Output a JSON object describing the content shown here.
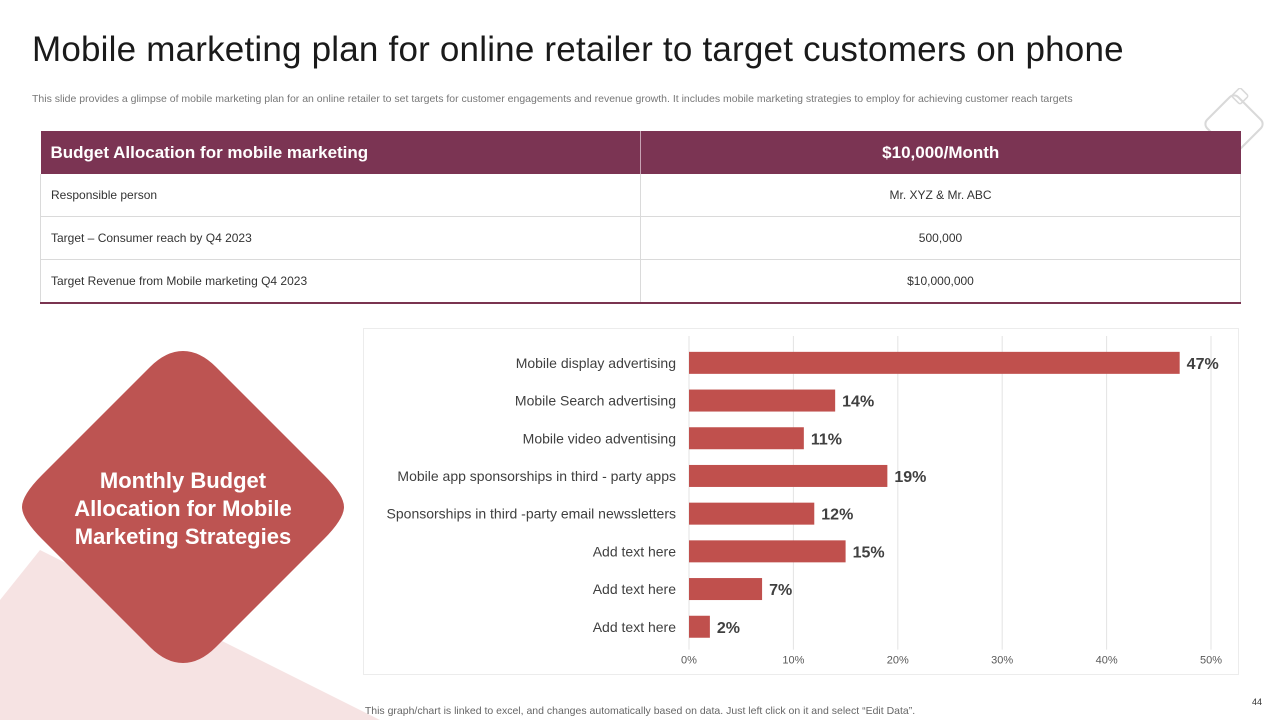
{
  "title": "Mobile marketing plan for online retailer to target customers on phone",
  "subtitle": "This slide provides a glimpse of mobile marketing plan for an online retailer to set targets for customer engagements and revenue growth. It includes mobile marketing strategies to employ for achieving customer reach targets",
  "table": {
    "header": [
      "Budget Allocation for mobile marketing",
      "$10,000/Month"
    ],
    "rows": [
      [
        "Responsible  person",
        "Mr. XYZ  &  Mr. ABC"
      ],
      [
        "Target  – Consumer  reach  by Q4  2023",
        "500,000"
      ],
      [
        "Target  Revenue  from  Mobile  marketing  Q4  2023",
        "$10,000,000"
      ]
    ]
  },
  "callout": {
    "lines": [
      "Monthly Budget",
      "Allocation for Mobile",
      "Marketing Strategies"
    ]
  },
  "colors": {
    "header": "#7b3453",
    "bar": "#c0504d",
    "diamond": "#bd5452",
    "accent_light": "#f6e3e3"
  },
  "chart_data": {
    "type": "bar",
    "orientation": "horizontal",
    "categories": [
      "Mobile display advertising",
      "Mobile Search advertising",
      "Mobile video adventising",
      "Mobile app sponsorships in third - party apps",
      "Sponsorships in third -party email newssletters",
      "Add text here",
      "Add text here",
      "Add text here"
    ],
    "values": [
      47,
      14,
      11,
      19,
      12,
      15,
      7,
      2
    ],
    "value_labels": [
      "47%",
      "14%",
      "11%",
      "19%",
      "12%",
      "15%",
      "7%",
      "2%"
    ],
    "x_ticks": [
      "0%",
      "10%",
      "20%",
      "30%",
      "40%",
      "50%"
    ],
    "xlim": [
      0,
      50
    ],
    "grid": true,
    "xlabel": "",
    "ylabel": ""
  },
  "footnote": "This graph/chart is linked to excel,  and changes automatically based on data. Just left click on it and select “Edit Data”.",
  "page_number": "44"
}
